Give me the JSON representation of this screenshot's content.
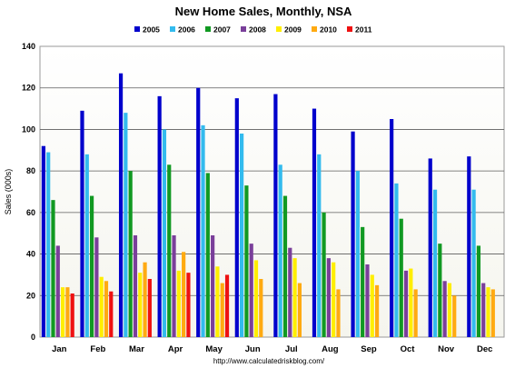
{
  "chart_data": {
    "type": "bar",
    "title": "New Home Sales, Monthly, NSA",
    "ylabel": "Sales (000s)",
    "xlabel": "",
    "ylim": [
      0,
      140
    ],
    "yticks": [
      0,
      20,
      40,
      60,
      80,
      100,
      120,
      140
    ],
    "grid": "horizontal",
    "legend_position": "top",
    "source": "http://www.calculatedriskblog.com/",
    "categories": [
      "Jan",
      "Feb",
      "Mar",
      "Apr",
      "May",
      "Jun",
      "Jul",
      "Aug",
      "Sep",
      "Oct",
      "Nov",
      "Dec"
    ],
    "series": [
      {
        "name": "2005",
        "color": "#0000cc",
        "values": [
          92,
          109,
          127,
          116,
          120,
          115,
          117,
          110,
          99,
          105,
          86,
          87
        ]
      },
      {
        "name": "2006",
        "color": "#33bbee",
        "values": [
          89,
          88,
          108,
          100,
          102,
          98,
          83,
          88,
          80,
          74,
          71,
          71
        ]
      },
      {
        "name": "2007",
        "color": "#119922",
        "values": [
          66,
          68,
          80,
          83,
          79,
          73,
          68,
          60,
          53,
          57,
          45,
          44
        ]
      },
      {
        "name": "2008",
        "color": "#7a3f9a",
        "values": [
          44,
          48,
          49,
          49,
          49,
          45,
          43,
          38,
          35,
          32,
          27,
          26
        ]
      },
      {
        "name": "2009",
        "color": "#ffee00",
        "values": [
          24,
          29,
          31,
          32,
          34,
          37,
          38,
          36,
          30,
          33,
          26,
          24
        ]
      },
      {
        "name": "2010",
        "color": "#ffaa11",
        "values": [
          24,
          27,
          36,
          41,
          26,
          28,
          26,
          23,
          25,
          23,
          20,
          23
        ]
      },
      {
        "name": "2011",
        "color": "#ee1111",
        "values": [
          21,
          22,
          28,
          31,
          30,
          null,
          null,
          null,
          null,
          null,
          null,
          null
        ]
      }
    ]
  }
}
